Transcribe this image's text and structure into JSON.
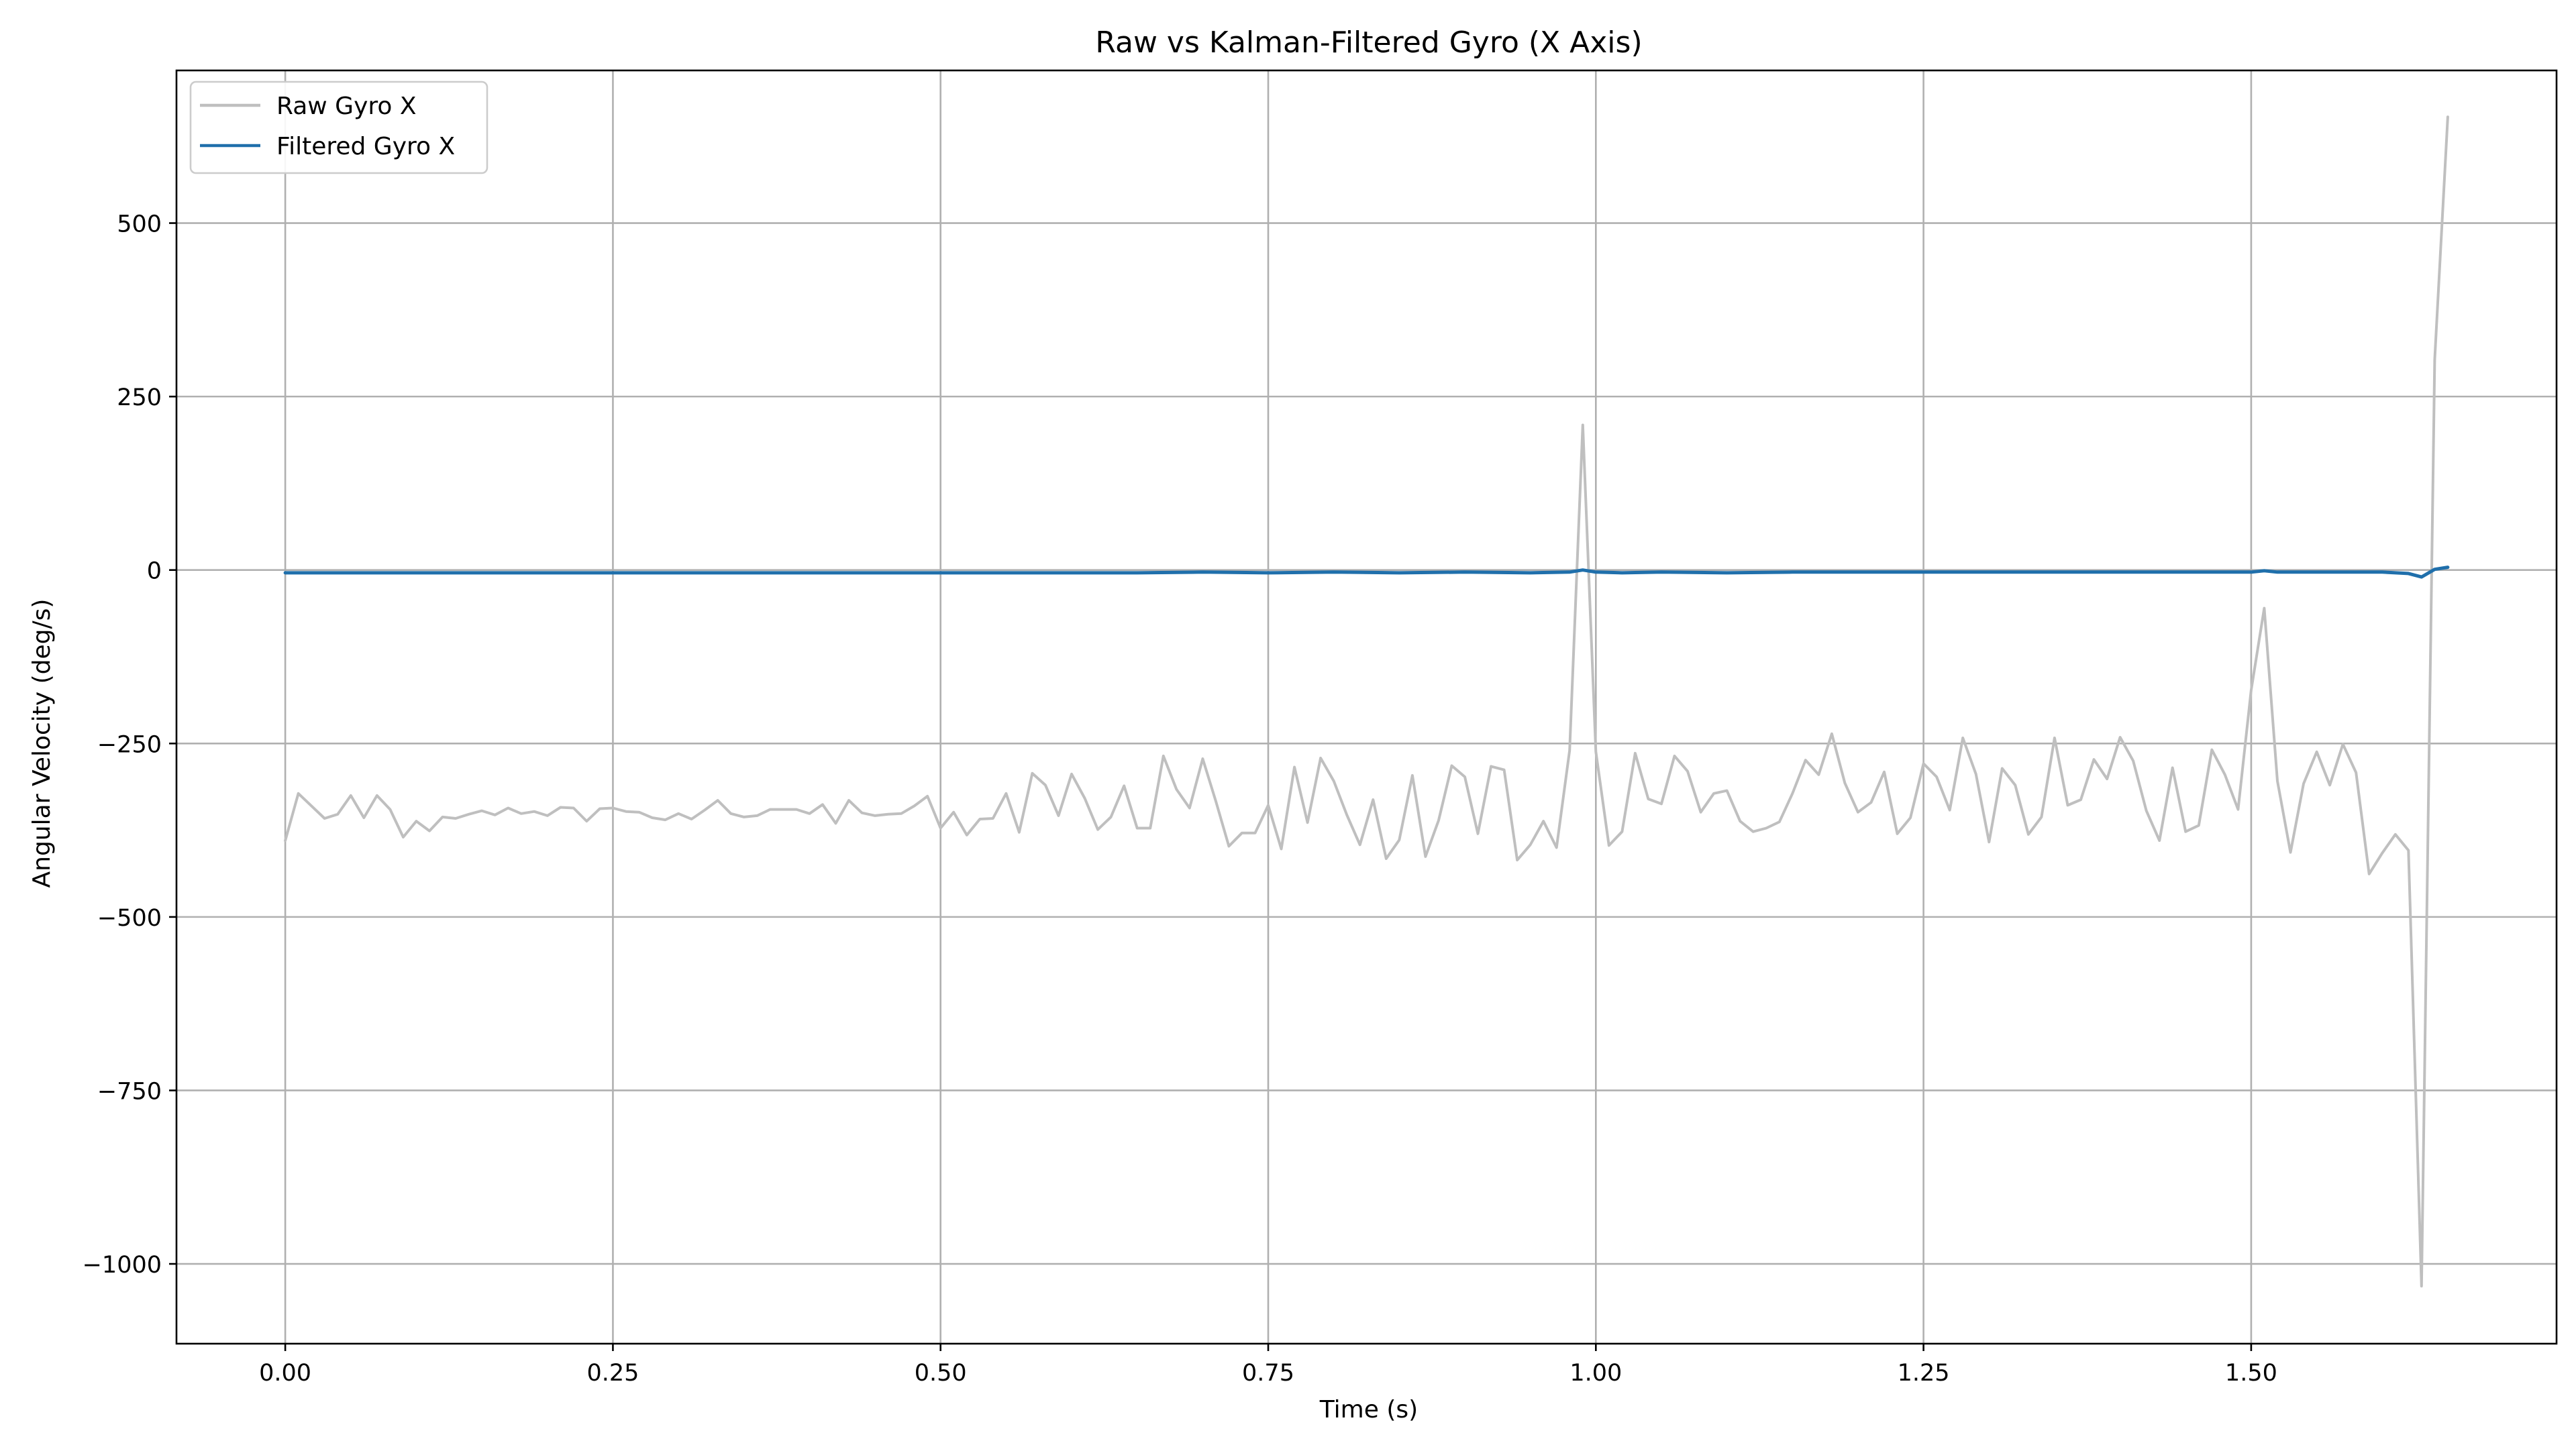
{
  "chart_data": {
    "type": "line",
    "title": "Raw vs Kalman-Filtered Gyro (X Axis)",
    "xlabel": "Time (s)",
    "ylabel": "Angular Velocity (deg/s)",
    "xlim": [
      -0.083,
      1.733
    ],
    "ylim": [
      -1115,
      720
    ],
    "xticks": [
      0.0,
      0.25,
      0.5,
      0.75,
      1.0,
      1.25,
      1.5
    ],
    "xtick_labels": [
      "0.00",
      "0.25",
      "0.50",
      "0.75",
      "1.00",
      "1.25",
      "1.50"
    ],
    "yticks": [
      500,
      250,
      0,
      -250,
      -500,
      -750,
      -1000
    ],
    "ytick_labels": [
      "500",
      "250",
      "0",
      "−250",
      "−500",
      "−750",
      "−1000"
    ],
    "grid": true,
    "legend_position": "top-left",
    "series": [
      {
        "name": "Raw Gyro X",
        "color": "#bfbfbf",
        "x": [
          0.0,
          0.01,
          0.02,
          0.03,
          0.04,
          0.05,
          0.06,
          0.07,
          0.08,
          0.09,
          0.1,
          0.11,
          0.12,
          0.13,
          0.14,
          0.15,
          0.16,
          0.17,
          0.18,
          0.19,
          0.2,
          0.21,
          0.22,
          0.23,
          0.24,
          0.25,
          0.26,
          0.27,
          0.28,
          0.29,
          0.3,
          0.31,
          0.32,
          0.33,
          0.34,
          0.35,
          0.36,
          0.37,
          0.38,
          0.39,
          0.4,
          0.41,
          0.42,
          0.43,
          0.44,
          0.45,
          0.46,
          0.47,
          0.48,
          0.49,
          0.5,
          0.51,
          0.52,
          0.53,
          0.54,
          0.55,
          0.56,
          0.57,
          0.58,
          0.59,
          0.6,
          0.61,
          0.62,
          0.63,
          0.64,
          0.65,
          0.66,
          0.67,
          0.68,
          0.69,
          0.7,
          0.71,
          0.72,
          0.73,
          0.74,
          0.75,
          0.76,
          0.77,
          0.78,
          0.79,
          0.8,
          0.81,
          0.82,
          0.83,
          0.84,
          0.85,
          0.86,
          0.87,
          0.88,
          0.89,
          0.9,
          0.91,
          0.92,
          0.93,
          0.94,
          0.95,
          0.96,
          0.97,
          0.98,
          0.99,
          1.0,
          1.01,
          1.02,
          1.03,
          1.04,
          1.05,
          1.06,
          1.07,
          1.08,
          1.09,
          1.1,
          1.11,
          1.12,
          1.13,
          1.14,
          1.15,
          1.16,
          1.17,
          1.18,
          1.19,
          1.2,
          1.21,
          1.22,
          1.23,
          1.24,
          1.25,
          1.26,
          1.27,
          1.28,
          1.29,
          1.3,
          1.31,
          1.32,
          1.33,
          1.34,
          1.35,
          1.36,
          1.37,
          1.38,
          1.39,
          1.4,
          1.41,
          1.42,
          1.43,
          1.44,
          1.45,
          1.46,
          1.47,
          1.48,
          1.49,
          1.5,
          1.51,
          1.52,
          1.53,
          1.54,
          1.55,
          1.56,
          1.57,
          1.58,
          1.59,
          1.6,
          1.61,
          1.62,
          1.63,
          1.64,
          1.65
        ],
        "values": [
          -390,
          -322,
          -340,
          -358,
          -352,
          -325,
          -357,
          -325,
          -345,
          -385,
          -362,
          -376,
          -356,
          -358,
          -352,
          -347,
          -353,
          -343,
          -351,
          -348,
          -354,
          -342,
          -343,
          -362,
          -344,
          -343,
          -348,
          -349,
          -357,
          -360,
          -351,
          -359,
          -346,
          -332,
          -351,
          -356,
          -354,
          -345,
          -345,
          -345,
          -351,
          -338,
          -365,
          -332,
          -350,
          -354,
          -352,
          -351,
          -340,
          -326,
          -372,
          -349,
          -382,
          -359,
          -358,
          -322,
          -378,
          -293,
          -310,
          -354,
          -294,
          -329,
          -374,
          -356,
          -311,
          -372,
          -372,
          -268,
          -316,
          -343,
          -272,
          -333,
          -398,
          -379,
          -379,
          -339,
          -402,
          -284,
          -364,
          -271,
          -304,
          -353,
          -396,
          -331,
          -416,
          -389,
          -296,
          -413,
          -361,
          -282,
          -298,
          -380,
          -283,
          -288,
          -418,
          -396,
          -362,
          -400,
          -260,
          209,
          -262,
          -397,
          -377,
          -264,
          -330,
          -337,
          -268,
          -290,
          -349,
          -322,
          -318,
          -362,
          -377,
          -372,
          -363,
          -322,
          -274,
          -295,
          -236,
          -307,
          -349,
          -335,
          -291,
          -380,
          -357,
          -279,
          -298,
          -346,
          -242,
          -294,
          -392,
          -286,
          -310,
          -381,
          -356,
          -242,
          -339,
          -331,
          -273,
          -301,
          -241,
          -275,
          -347,
          -390,
          -285,
          -377,
          -368,
          -259,
          -295,
          -345,
          -173,
          -55,
          -304,
          -407,
          -308,
          -262,
          -310,
          -251,
          -292,
          -438,
          -408,
          -381,
          -404,
          -1032,
          303,
          653
        ]
      },
      {
        "name": "Filtered Gyro X",
        "color": "#1f6fab",
        "x": [
          0.0,
          0.05,
          0.1,
          0.15,
          0.2,
          0.25,
          0.3,
          0.35,
          0.4,
          0.45,
          0.5,
          0.55,
          0.6,
          0.65,
          0.7,
          0.75,
          0.8,
          0.85,
          0.9,
          0.95,
          0.98,
          0.99,
          1.0,
          1.02,
          1.05,
          1.1,
          1.15,
          1.2,
          1.25,
          1.3,
          1.35,
          1.4,
          1.45,
          1.5,
          1.51,
          1.52,
          1.55,
          1.6,
          1.62,
          1.63,
          1.64,
          1.65
        ],
        "values": [
          -4,
          -4,
          -4,
          -4,
          -4,
          -4,
          -4,
          -4,
          -4,
          -4,
          -4,
          -4,
          -4,
          -4,
          -3,
          -4,
          -3,
          -4,
          -3,
          -4,
          -3,
          0,
          -3,
          -4,
          -3,
          -4,
          -3,
          -3,
          -3,
          -3,
          -3,
          -3,
          -3,
          -3,
          -1,
          -3,
          -3,
          -3,
          -5,
          -10,
          1,
          4
        ]
      }
    ]
  }
}
